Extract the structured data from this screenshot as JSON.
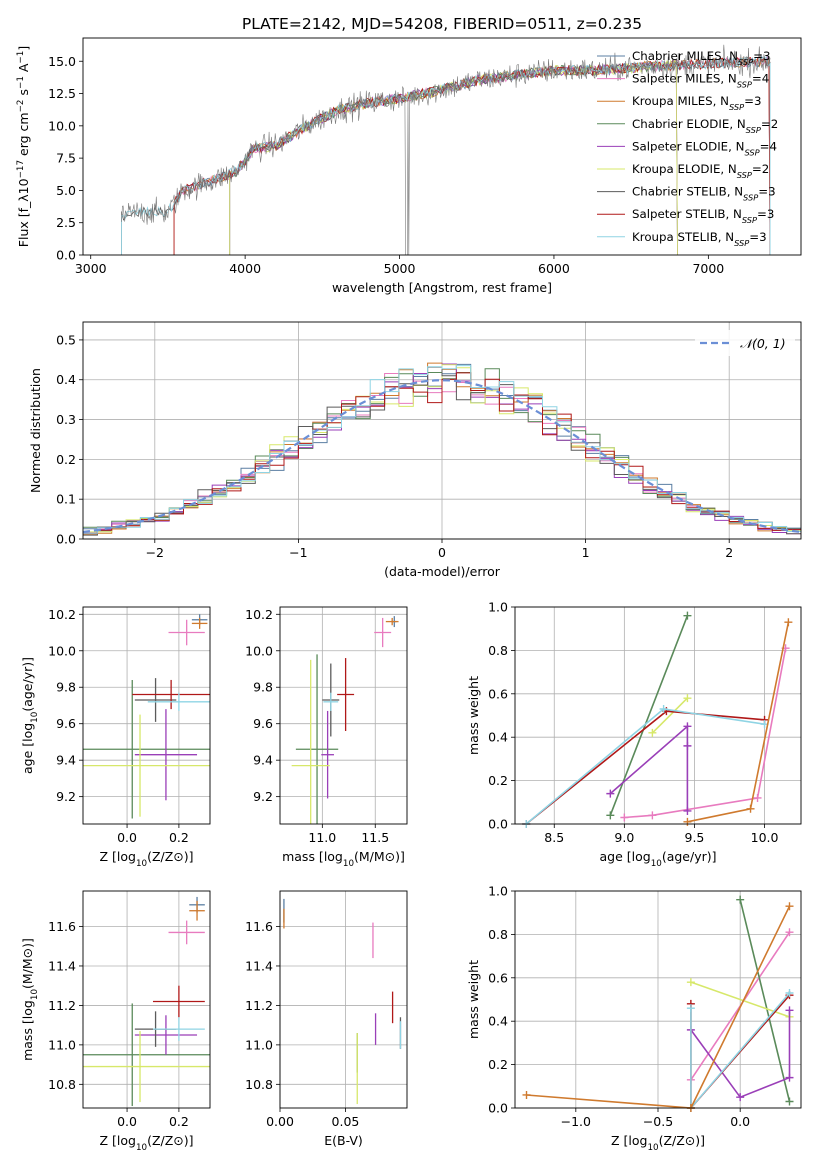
{
  "figure": {
    "title": "PLATE=2142, MJD=54208, FIBERID=0511, z=0.235"
  },
  "styles": {
    "colors": [
      "#5b7fa3",
      "#e87bbf",
      "#cf7a2e",
      "#5a8a5a",
      "#9a3fb8",
      "#d7e86a",
      "#5b5b5b",
      "#b01818",
      "#8fd4e4"
    ],
    "gauss_color": "#6b8fd6",
    "grid_color": "#b0b0b0"
  },
  "chart_data": [
    {
      "id": "spectrum",
      "type": "line",
      "xlabel": "wavelength [Angstrom, rest frame]",
      "ylabel": "Flux [f_λ10^-17 erg cm^-2 s^-1 A^-1]",
      "xlim": [
        2950,
        7600
      ],
      "ylim": [
        0,
        16.8
      ],
      "xticks": [
        "3000",
        "4000",
        "5000",
        "6000",
        "7000"
      ],
      "xtick_values": [
        3000,
        4000,
        5000,
        6000,
        7000
      ],
      "yticks": [
        "0.0",
        "2.5",
        "5.0",
        "7.5",
        "10.0",
        "12.5",
        "15.0"
      ],
      "ytick_values": [
        0,
        2.5,
        5,
        7.5,
        10,
        12.5,
        15
      ],
      "grid": false,
      "legend_position": "upper-right",
      "legend": [
        "Chabrier MILES, N_SSP=3",
        "Salpeter MILES, N_SSP=4",
        "Kroupa MILES, N_SSP=3",
        "Chabrier ELODIE, N_SSP=2",
        "Salpeter ELODIE, N_SSP=4",
        "Kroupa ELODIE, N_SSP=2",
        "Chabrier STELIB, N_SSP=3",
        "Salpeter STELIB, N_SSP=3",
        "Kroupa STELIB, N_SSP=3"
      ],
      "model_ranges": [
        [
          3540,
          7400
        ],
        [
          3540,
          7400
        ],
        [
          3540,
          7400
        ],
        [
          3900,
          6800
        ],
        [
          3900,
          6800
        ],
        [
          3900,
          6800
        ],
        [
          3200,
          7400
        ],
        [
          3540,
          7400
        ],
        [
          3200,
          7400
        ]
      ],
      "continuum_knots": [
        [
          3200,
          3.0
        ],
        [
          3300,
          3.3
        ],
        [
          3500,
          3.3
        ],
        [
          3600,
          5.0
        ],
        [
          3800,
          5.8
        ],
        [
          3950,
          6.5
        ],
        [
          4050,
          8.2
        ],
        [
          4200,
          8.5
        ],
        [
          4400,
          10.0
        ],
        [
          4600,
          11.2
        ],
        [
          4800,
          11.8
        ],
        [
          5000,
          12.1
        ],
        [
          5200,
          12.6
        ],
        [
          5500,
          13.5
        ],
        [
          5800,
          14.0
        ],
        [
          6000,
          14.3
        ],
        [
          6300,
          14.3
        ],
        [
          6600,
          14.6
        ],
        [
          7000,
          14.8
        ],
        [
          7400,
          15.0
        ]
      ],
      "observed_sample_step": 5
    },
    {
      "id": "residuals",
      "type": "histogram",
      "xlabel": "(data-model)/error",
      "ylabel": "Normed distribution",
      "xlim": [
        -2.5,
        2.5
      ],
      "ylim": [
        0,
        0.545
      ],
      "xticks": [
        "−2",
        "−1",
        "0",
        "1",
        "2"
      ],
      "xtick_values": [
        -2,
        -1,
        0,
        1,
        2
      ],
      "yticks": [
        "0.0",
        "0.1",
        "0.2",
        "0.3",
        "0.4",
        "0.5"
      ],
      "ytick_values": [
        0,
        0.1,
        0.2,
        0.3,
        0.4,
        0.5
      ],
      "grid": true,
      "bin_width": 0.1,
      "bin_start": -2.5,
      "legend_position": "upper-right",
      "gauss_label": "𝒩(0, 1)",
      "series_count": 9
    },
    {
      "id": "age-vs-Z",
      "type": "scatter",
      "xlabel": "Z [log10(Z/Z⊙)]",
      "ylabel": "age [log10(age/yr)]",
      "xlim": [
        -0.17,
        0.32
      ],
      "ylim": [
        9.05,
        10.24
      ],
      "xticks": [
        "0.0",
        "0.2"
      ],
      "xtick_values": [
        0.0,
        0.2
      ],
      "yticks": [
        "9.2",
        "9.4",
        "9.6",
        "9.8",
        "10.0",
        "10.2"
      ],
      "ytick_values": [
        9.2,
        9.4,
        9.6,
        9.8,
        10.0,
        10.2
      ],
      "grid": true,
      "points": [
        {
          "x": 0.28,
          "y": 10.17,
          "xerr": 0.03,
          "yerr": 0.03,
          "color": 0
        },
        {
          "x": 0.23,
          "y": 10.1,
          "xerr": 0.07,
          "yerr": 0.07,
          "color": 1
        },
        {
          "x": 0.28,
          "y": 10.15,
          "xerr": 0.03,
          "yerr": 0.03,
          "color": 2
        },
        {
          "x": 0.02,
          "y": 9.46,
          "xerr": 0.32,
          "yerr": 0.38,
          "color": 3
        },
        {
          "x": 0.15,
          "y": 9.43,
          "xerr": 0.12,
          "yerr": 0.25,
          "color": 4
        },
        {
          "x": 0.05,
          "y": 9.37,
          "xerr": 0.3,
          "yerr": 0.28,
          "color": 5
        },
        {
          "x": 0.11,
          "y": 9.73,
          "xerr": 0.08,
          "yerr": 0.12,
          "color": 6
        },
        {
          "x": 0.17,
          "y": 9.76,
          "xerr": 0.15,
          "yerr": 0.08,
          "color": 7
        },
        {
          "x": 0.2,
          "y": 9.72,
          "xerr": 0.12,
          "yerr": 0.05,
          "color": 8
        }
      ]
    },
    {
      "id": "age-vs-mass",
      "type": "scatter",
      "xlabel": "mass [log10(M/M⊙)]",
      "ylabel": "",
      "xlim": [
        10.6,
        11.8
      ],
      "ylim": [
        9.05,
        10.24
      ],
      "xticks": [
        "11.0",
        "11.5"
      ],
      "xtick_values": [
        11.0,
        11.5
      ],
      "yticks": [
        "9.2",
        "9.4",
        "9.6",
        "9.8",
        "10.0",
        "10.2"
      ],
      "ytick_values": [
        9.2,
        9.4,
        9.6,
        9.8,
        10.0,
        10.2
      ],
      "grid": true,
      "points": [
        {
          "x": 11.68,
          "y": 10.16,
          "xerr": 0.02,
          "yerr": 0.03,
          "color": 0
        },
        {
          "x": 11.57,
          "y": 10.1,
          "xerr": 0.08,
          "yerr": 0.08,
          "color": 1
        },
        {
          "x": 11.66,
          "y": 10.16,
          "xerr": 0.06,
          "yerr": 0.02,
          "color": 2
        },
        {
          "x": 10.95,
          "y": 9.46,
          "xerr": 0.2,
          "yerr": 0.52,
          "color": 3
        },
        {
          "x": 11.05,
          "y": 9.43,
          "xerr": 0.06,
          "yerr": 0.24,
          "color": 4
        },
        {
          "x": 10.89,
          "y": 9.37,
          "xerr": 0.18,
          "yerr": 0.58,
          "color": 5
        },
        {
          "x": 11.08,
          "y": 9.73,
          "xerr": 0.08,
          "yerr": 0.2,
          "color": 6
        },
        {
          "x": 11.22,
          "y": 9.76,
          "xerr": 0.08,
          "yerr": 0.2,
          "color": 7
        },
        {
          "x": 11.08,
          "y": 9.72,
          "xerr": 0.07,
          "yerr": 0.05,
          "color": 8
        }
      ]
    },
    {
      "id": "weight-vs-age",
      "type": "line",
      "xlabel": "age [log10(age/yr)]",
      "ylabel": "mass weight",
      "xlim": [
        8.22,
        10.26
      ],
      "ylim": [
        0,
        1.0
      ],
      "xticks": [
        "8.5",
        "9.0",
        "9.5",
        "10.0"
      ],
      "xtick_values": [
        8.5,
        9.0,
        9.5,
        10.0
      ],
      "yticks": [
        "0.0",
        "0.2",
        "0.4",
        "0.6",
        "0.8",
        "1.0"
      ],
      "ytick_values": [
        0,
        0.2,
        0.4,
        0.6,
        0.8,
        1.0
      ],
      "grid": true,
      "series": [
        {
          "color": 1,
          "points": [
            [
              9.0,
              0.03
            ],
            [
              9.2,
              0.04
            ],
            [
              9.95,
              0.12
            ],
            [
              10.15,
              0.81
            ]
          ]
        },
        {
          "color": 3,
          "points": [
            [
              8.9,
              0.04
            ],
            [
              9.45,
              0.96
            ]
          ]
        },
        {
          "color": 5,
          "points": [
            [
              9.2,
              0.42
            ],
            [
              9.45,
              0.58
            ]
          ]
        },
        {
          "color": 4,
          "points": [
            [
              8.9,
              0.14
            ],
            [
              9.45,
              0.45
            ],
            [
              9.45,
              0.36
            ],
            [
              9.45,
              0.06
            ]
          ]
        },
        {
          "color": 7,
          "points": [
            [
              8.3,
              0.0
            ],
            [
              9.3,
              0.52
            ],
            [
              10.0,
              0.48
            ]
          ]
        },
        {
          "color": 8,
          "points": [
            [
              8.3,
              0.0
            ],
            [
              9.28,
              0.53
            ],
            [
              10.0,
              0.46
            ]
          ]
        },
        {
          "color": 2,
          "points": [
            [
              9.45,
              0.01
            ],
            [
              9.9,
              0.07
            ],
            [
              10.17,
              0.93
            ]
          ]
        }
      ]
    },
    {
      "id": "mass-vs-Z",
      "type": "scatter",
      "xlabel": "Z [log10(Z/Z⊙)]",
      "ylabel": "mass [log10(M/M⊙)]",
      "xlim": [
        -0.17,
        0.32
      ],
      "ylim": [
        10.68,
        11.78
      ],
      "xticks": [
        "0.0",
        "0.2"
      ],
      "xtick_values": [
        0.0,
        0.2
      ],
      "yticks": [
        "10.8",
        "11.0",
        "11.2",
        "11.4",
        "11.6"
      ],
      "ytick_values": [
        10.8,
        11.0,
        11.2,
        11.4,
        11.6
      ],
      "grid": true,
      "points": [
        {
          "x": 0.27,
          "y": 11.71,
          "xerr": 0.03,
          "yerr": 0.04,
          "color": 0
        },
        {
          "x": 0.23,
          "y": 11.57,
          "xerr": 0.07,
          "yerr": 0.06,
          "color": 1
        },
        {
          "x": 0.27,
          "y": 11.68,
          "xerr": 0.03,
          "yerr": 0.05,
          "color": 2
        },
        {
          "x": 0.02,
          "y": 10.95,
          "xerr": 0.32,
          "yerr": 0.26,
          "color": 3
        },
        {
          "x": 0.15,
          "y": 11.05,
          "xerr": 0.12,
          "yerr": 0.1,
          "color": 4
        },
        {
          "x": 0.05,
          "y": 10.89,
          "xerr": 0.3,
          "yerr": 0.18,
          "color": 5
        },
        {
          "x": 0.11,
          "y": 11.08,
          "xerr": 0.08,
          "yerr": 0.09,
          "color": 6
        },
        {
          "x": 0.2,
          "y": 11.22,
          "xerr": 0.1,
          "yerr": 0.08,
          "color": 7
        },
        {
          "x": 0.2,
          "y": 11.08,
          "xerr": 0.1,
          "yerr": 0.06,
          "color": 8
        }
      ]
    },
    {
      "id": "mass-vs-EBV",
      "type": "scatter",
      "xlabel": "E(B-V)",
      "ylabel": "",
      "xlim": [
        0.0,
        0.097
      ],
      "ylim": [
        10.68,
        11.78
      ],
      "xticks": [
        "0.00",
        "0.05"
      ],
      "xtick_values": [
        0.0,
        0.05
      ],
      "yticks": [
        "10.8",
        "11.0",
        "11.2",
        "11.4",
        "11.6"
      ],
      "ytick_values": [
        10.8,
        11.0,
        11.2,
        11.4,
        11.6
      ],
      "grid": true,
      "points": [
        {
          "x": 0.003,
          "y": 11.68,
          "xerr": 0,
          "yerr": 0.06,
          "color": 0
        },
        {
          "x": 0.071,
          "y": 11.53,
          "xerr": 0,
          "yerr": 0.09,
          "color": 1
        },
        {
          "x": 0.003,
          "y": 11.64,
          "xerr": 0,
          "yerr": 0.05,
          "color": 2
        },
        {
          "x": 0.059,
          "y": 10.96,
          "xerr": 0,
          "yerr": 0.1,
          "color": 3
        },
        {
          "x": 0.073,
          "y": 11.08,
          "xerr": 0,
          "yerr": 0.08,
          "color": 4
        },
        {
          "x": 0.059,
          "y": 10.88,
          "xerr": 0,
          "yerr": 0.18,
          "color": 5
        },
        {
          "x": 0.092,
          "y": 11.06,
          "xerr": 0,
          "yerr": 0.08,
          "color": 6
        },
        {
          "x": 0.086,
          "y": 11.19,
          "xerr": 0,
          "yerr": 0.08,
          "color": 7
        },
        {
          "x": 0.092,
          "y": 11.05,
          "xerr": 0,
          "yerr": 0.07,
          "color": 8
        }
      ]
    },
    {
      "id": "weight-vs-Z",
      "type": "line",
      "xlabel": "Z [log10(Z/Z⊙)]",
      "ylabel": "mass weight",
      "xlim": [
        -1.37,
        0.37
      ],
      "ylim": [
        0,
        1.0
      ],
      "xticks": [
        "−1.0",
        "−0.5",
        "0.0"
      ],
      "xtick_values": [
        -1.0,
        -0.5,
        0.0
      ],
      "yticks": [
        "0.0",
        "0.2",
        "0.4",
        "0.6",
        "0.8",
        "1.0"
      ],
      "ytick_values": [
        0,
        0.2,
        0.4,
        0.6,
        0.8,
        1.0
      ],
      "grid": true,
      "series": [
        {
          "color": 1,
          "points": [
            [
              -0.3,
              0.13
            ],
            [
              0.3,
              0.81
            ]
          ]
        },
        {
          "color": 3,
          "points": [
            [
              0.0,
              0.96
            ],
            [
              0.3,
              0.03
            ]
          ]
        },
        {
          "color": 5,
          "points": [
            [
              -0.3,
              0.58
            ],
            [
              0.3,
              0.42
            ]
          ]
        },
        {
          "color": 4,
          "points": [
            [
              -0.3,
              0.36
            ],
            [
              0.0,
              0.05
            ],
            [
              0.3,
              0.14
            ],
            [
              0.3,
              0.45
            ]
          ]
        },
        {
          "color": 7,
          "points": [
            [
              -0.3,
              0.48
            ],
            [
              -0.3,
              0.0
            ],
            [
              0.3,
              0.52
            ]
          ]
        },
        {
          "color": 8,
          "points": [
            [
              -0.3,
              0.46
            ],
            [
              -0.3,
              0.0
            ],
            [
              0.3,
              0.53
            ]
          ]
        },
        {
          "color": 2,
          "points": [
            [
              -1.3,
              0.06
            ],
            [
              -0.3,
              0.0
            ],
            [
              0.3,
              0.93
            ]
          ]
        }
      ]
    }
  ]
}
